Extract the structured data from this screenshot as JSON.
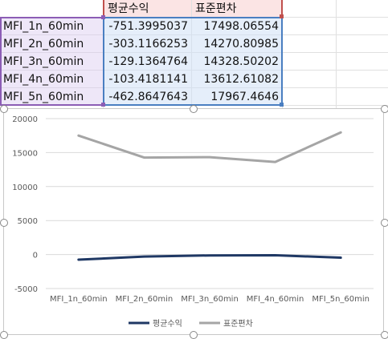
{
  "sheet": {
    "headers": [
      "평균수익",
      "표준편차"
    ],
    "rows": [
      {
        "label": "MFI_1n_60min",
        "mean": "-751.3995037",
        "std": "17498.06554"
      },
      {
        "label": "MFI_2n_60min",
        "mean": "-303.1166253",
        "std": "14270.80985"
      },
      {
        "label": "MFI_3n_60min",
        "mean": "-129.1364764",
        "std": "14328.50202"
      },
      {
        "label": "MFI_4n_60min",
        "mean": "-103.4181141",
        "std": "13612.61082"
      },
      {
        "label": "MFI_5n_60min",
        "mean": "-462.8647643",
        "std": "17967.4646"
      }
    ]
  },
  "chart_data": {
    "type": "line",
    "categories": [
      "MFI_1n_60min",
      "MFI_2n_60min",
      "MFI_3n_60min",
      "MFI_4n_60min",
      "MFI_5n_60min"
    ],
    "series": [
      {
        "name": "평균수익",
        "values": [
          -751.3995037,
          -303.1166253,
          -129.1364764,
          -103.4181141,
          -462.8647643
        ],
        "color": "#1f3864"
      },
      {
        "name": "표준편차",
        "values": [
          17498.06554,
          14270.80985,
          14328.50202,
          13612.61082,
          17967.4646
        ],
        "color": "#a5a5a5"
      }
    ],
    "yticks": [
      "20000",
      "15000",
      "10000",
      "5000",
      "0",
      "-5000"
    ],
    "ylim": [
      -5000,
      20000
    ],
    "grid": true,
    "legend": "bottom",
    "title": "",
    "xlabel": "",
    "ylabel": ""
  }
}
